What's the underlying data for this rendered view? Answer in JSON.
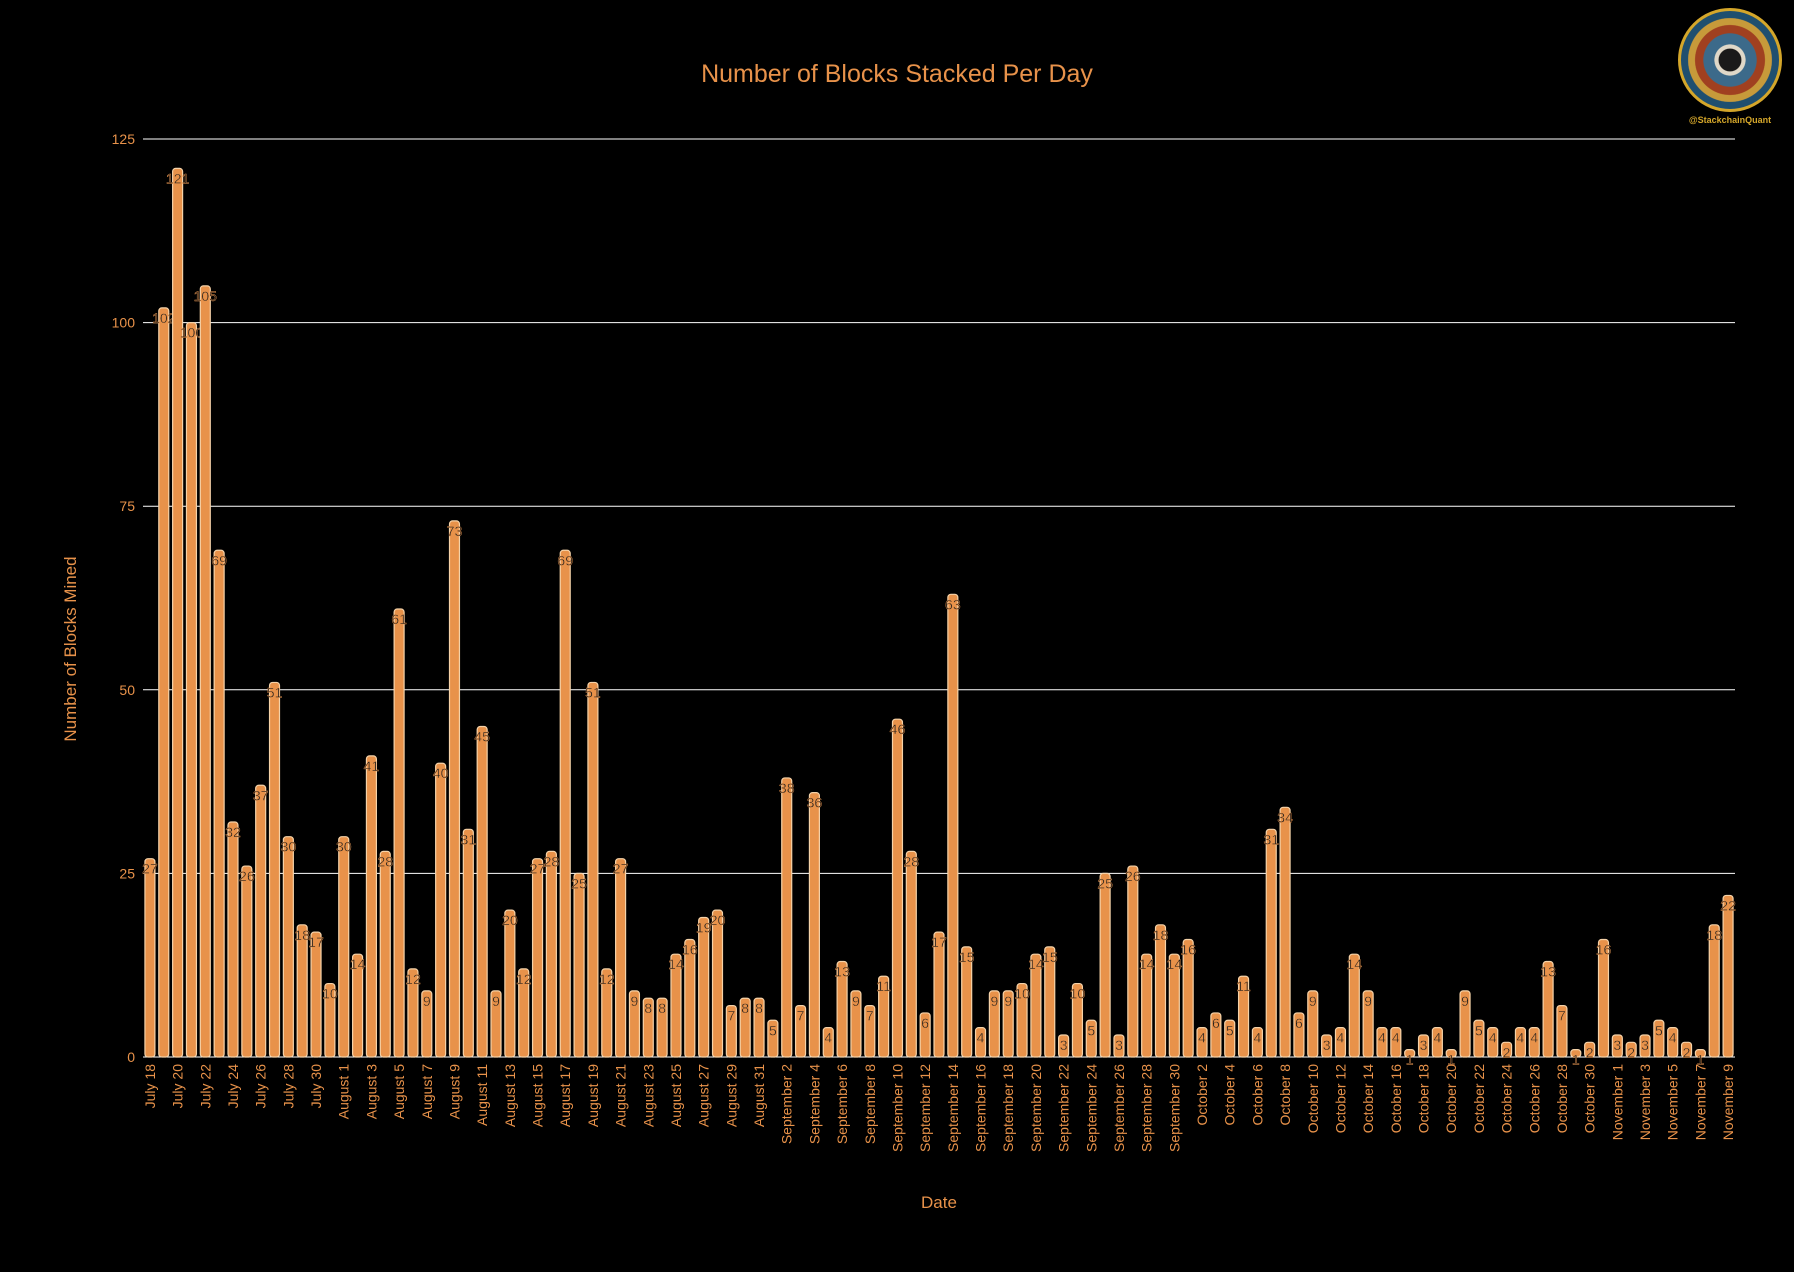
{
  "chart_data": {
    "type": "bar",
    "title": "Number of Blocks Stacked Per Day",
    "xlabel": "Date",
    "ylabel": "Number of Blocks Mined",
    "ylim": [
      0,
      125
    ],
    "yticks": [
      0,
      25,
      50,
      75,
      100,
      125
    ],
    "grid": true,
    "colors": {
      "background": "#000000",
      "bar": "#e8924a",
      "bar_outline": "#f5d2a8",
      "text": "#e8924a",
      "value_label": "#1a1a1a",
      "grid": "#ffffff"
    },
    "categories": [
      "July 18",
      "July 19",
      "July 20",
      "July 21",
      "July 22",
      "July 23",
      "July 24",
      "July 25",
      "July 26",
      "July 27",
      "July 28",
      "July 29",
      "July 30",
      "July 31",
      "August 1",
      "August 2",
      "August 3",
      "August 4",
      "August 5",
      "August 6",
      "August 7",
      "August 8",
      "August 9",
      "August 10",
      "August 11",
      "August 12",
      "August 13",
      "August 14",
      "August 15",
      "August 16",
      "August 17",
      "August 18",
      "August 19",
      "August 20",
      "August 21",
      "August 22",
      "August 23",
      "August 24",
      "August 25",
      "August 26",
      "August 27",
      "August 28",
      "August 29",
      "August 30",
      "August 31",
      "September 1",
      "September 2",
      "September 3",
      "September 4",
      "September 5",
      "September 6",
      "September 7",
      "September 8",
      "September 9",
      "September 10",
      "September 11",
      "September 12",
      "September 13",
      "September 14",
      "September 15",
      "September 16",
      "September 17",
      "September 18",
      "September 19",
      "September 20",
      "September 21",
      "September 22",
      "September 23",
      "September 24",
      "September 25",
      "September 26",
      "September 27",
      "September 28",
      "September 29",
      "September 30",
      "October 1",
      "October 2",
      "October 3",
      "October 4",
      "October 5",
      "October 6",
      "October 7",
      "October 8",
      "October 9",
      "October 10",
      "October 11",
      "October 12",
      "October 13",
      "October 14",
      "October 15",
      "October 16",
      "October 17",
      "October 18",
      "October 19",
      "October 20",
      "October 21",
      "October 22",
      "October 23",
      "October 24",
      "October 25",
      "October 26",
      "October 27",
      "October 28",
      "October 29",
      "October 30",
      "October 31",
      "November 1",
      "November 2",
      "November 3",
      "November 4",
      "November 5",
      "November 6",
      "November 7",
      "November 8",
      "November 9"
    ],
    "values": [
      27,
      102,
      121,
      100,
      105,
      69,
      32,
      26,
      37,
      51,
      30,
      18,
      17,
      10,
      30,
      14,
      41,
      28,
      61,
      12,
      9,
      40,
      73,
      31,
      45,
      9,
      20,
      12,
      27,
      28,
      69,
      25,
      51,
      12,
      27,
      9,
      8,
      8,
      14,
      16,
      19,
      20,
      7,
      8,
      8,
      5,
      38,
      7,
      36,
      4,
      13,
      9,
      7,
      11,
      46,
      28,
      6,
      17,
      63,
      15,
      4,
      9,
      9,
      10,
      14,
      15,
      3,
      10,
      5,
      25,
      3,
      26,
      14,
      18,
      14,
      16,
      4,
      6,
      5,
      11,
      4,
      31,
      34,
      6,
      9,
      3,
      4,
      14,
      9,
      4,
      4,
      1,
      3,
      4,
      1,
      9,
      5,
      4,
      2,
      4,
      4,
      13,
      7,
      1,
      2,
      16,
      3,
      2,
      3,
      5,
      4,
      2,
      1,
      18,
      22
    ],
    "tick_labels": [
      "July 18",
      "July 20",
      "July 22",
      "July 24",
      "July 26",
      "July 28",
      "July 30",
      "August 1",
      "August 3",
      "August 5",
      "August 7",
      "August 9",
      "August 11",
      "August 13",
      "August 15",
      "August 17",
      "August 19",
      "August 21",
      "August 23",
      "August 25",
      "August 27",
      "August 29",
      "August 31",
      "September 2",
      "September 4",
      "September 6",
      "September 8",
      "September 10",
      "September 12",
      "September 14",
      "September 16",
      "September 18",
      "September 20",
      "September 22",
      "September 24",
      "September 26",
      "September 28",
      "September 30",
      "October 2",
      "October 4",
      "October 6",
      "October 8",
      "October 10",
      "October 12",
      "October 14",
      "October 16",
      "October 18",
      "October 20",
      "October 22",
      "October 24",
      "October 26",
      "October 28",
      "October 30",
      "November 1",
      "November 3",
      "November 5",
      "November 7",
      "November 9"
    ]
  },
  "logo": {
    "handle": "@StackchainQuant"
  }
}
